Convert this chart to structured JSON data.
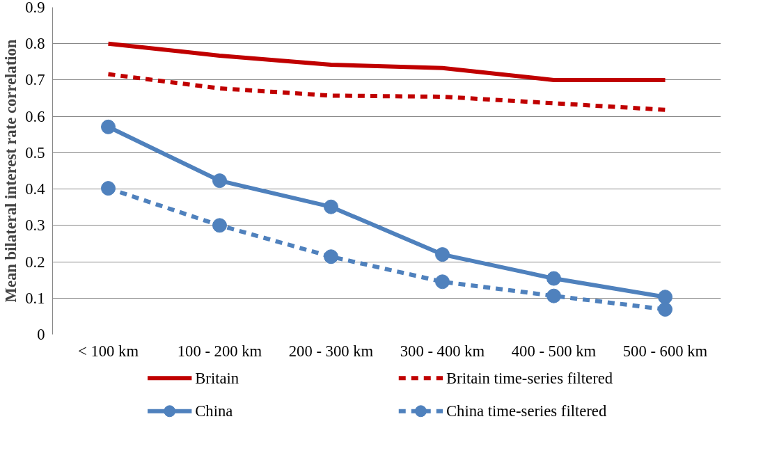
{
  "chart_data": {
    "type": "line",
    "ylabel": "Mean bilateral interest rate correlation",
    "categories": [
      "< 100 km",
      "100 - 200 km",
      "200 - 300 km",
      "300 - 400 km",
      "400 - 500 km",
      "500 - 600 km"
    ],
    "ylim": [
      0,
      0.9
    ],
    "yticks": [
      0,
      0.1,
      0.2,
      0.3,
      0.4,
      0.5,
      0.6,
      0.7,
      0.8,
      0.9
    ],
    "grid": "y",
    "legend": "bottom",
    "series": [
      {
        "name": "Britain",
        "color": "#c00000",
        "line_style": "solid",
        "marker": "none",
        "values": [
          0.8,
          0.767,
          0.742,
          0.733,
          0.7,
          0.7
        ]
      },
      {
        "name": "Britain time-series filtered",
        "color": "#c00000",
        "line_style": "dashed",
        "marker": "none",
        "values": [
          0.716,
          0.677,
          0.657,
          0.654,
          0.636,
          0.618
        ]
      },
      {
        "name": "China",
        "color": "#4f81bd",
        "line_style": "solid",
        "marker": "circle",
        "values": [
          0.571,
          0.423,
          0.351,
          0.22,
          0.154,
          0.103
        ]
      },
      {
        "name": "China time-series filtered",
        "color": "#4f81bd",
        "line_style": "dashed",
        "marker": "circle",
        "values": [
          0.402,
          0.3,
          0.214,
          0.145,
          0.106,
          0.069
        ]
      }
    ]
  }
}
